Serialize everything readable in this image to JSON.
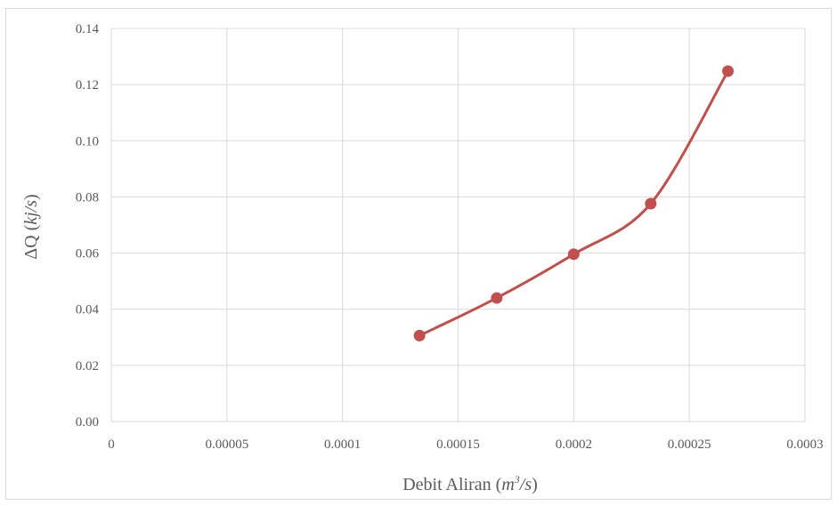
{
  "chart_data": {
    "type": "line",
    "smooth": true,
    "markers": true,
    "grid": true,
    "legend": "none",
    "xlim": [
      0,
      0.0003
    ],
    "ylim": [
      0,
      0.14
    ],
    "x_ticks": [
      "0",
      "0.00005",
      "0.0001",
      "0.00015",
      "0.0002",
      "0.00025",
      "0.0003"
    ],
    "y_ticks": [
      "0.00",
      "0.02",
      "0.04",
      "0.06",
      "0.08",
      "0.10",
      "0.12",
      "0.14"
    ],
    "xlabel": {
      "prefix": "Debit Aliran (",
      "unit_base": "m",
      "unit_sup": "3",
      "unit_rest": "/s",
      "suffix": ")"
    },
    "ylabel": {
      "prefix": "ΔQ (",
      "unit": "kj/s",
      "suffix": ")"
    },
    "series": [
      {
        "color": "#c0504d",
        "x": [
          0.0001333,
          0.0001667,
          0.0002,
          0.0002333,
          0.0002667
        ],
        "y": [
          0.0306,
          0.044,
          0.0596,
          0.0776,
          0.1248
        ]
      }
    ]
  }
}
